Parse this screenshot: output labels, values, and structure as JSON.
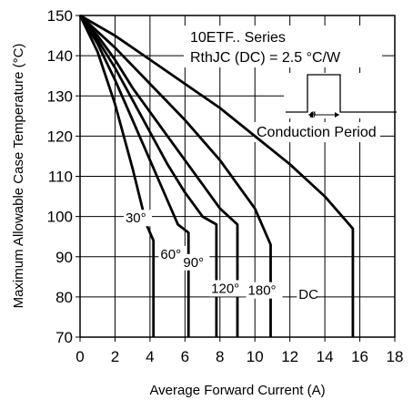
{
  "chart_data": {
    "type": "line",
    "title": "",
    "xlabel": "Average Forward Current (A)",
    "ylabel": "Maximum Allowable Case Temperature (°C)",
    "xlim": [
      0,
      18
    ],
    "ylim": [
      70,
      150
    ],
    "x_ticks": [
      "0",
      "2",
      "4",
      "6",
      "8",
      "10",
      "12",
      "14",
      "16",
      "18"
    ],
    "y_ticks": [
      "70",
      "80",
      "90",
      "100",
      "110",
      "120",
      "130",
      "140",
      "150"
    ],
    "grid": true,
    "annotations": {
      "series_name": "10ETF.. Series",
      "rth": "RthJC (DC) = 2.5 °C/W",
      "inset_symbol": "ø",
      "inset_label": "Conduction Period"
    },
    "series": [
      {
        "name": "30°",
        "label_pos": [
          2.6,
          98.5
        ],
        "points": [
          [
            0,
            150
          ],
          [
            1,
            141
          ],
          [
            2,
            128
          ],
          [
            3,
            112
          ],
          [
            3.8,
            98
          ],
          [
            4.2,
            94
          ],
          [
            4.2,
            70
          ]
        ]
      },
      {
        "name": "60°",
        "label_pos": [
          4.6,
          89.5
        ],
        "points": [
          [
            0,
            150
          ],
          [
            1,
            143
          ],
          [
            2,
            134
          ],
          [
            3,
            124
          ],
          [
            4,
            114
          ],
          [
            5,
            104
          ],
          [
            5.6,
            98
          ],
          [
            6.2,
            96
          ],
          [
            6.2,
            70
          ]
        ]
      },
      {
        "name": "90°",
        "label_pos": [
          5.9,
          87.5
        ],
        "points": [
          [
            0,
            150
          ],
          [
            1,
            144
          ],
          [
            2,
            137
          ],
          [
            3,
            129
          ],
          [
            4,
            121
          ],
          [
            5,
            113
          ],
          [
            6,
            106
          ],
          [
            7,
            100
          ],
          [
            7.8,
            98
          ],
          [
            7.8,
            70
          ]
        ]
      },
      {
        "name": "120°",
        "label_pos": [
          7.5,
          81.0
        ],
        "points": [
          [
            0,
            150
          ],
          [
            1,
            145
          ],
          [
            2,
            139
          ],
          [
            3,
            132
          ],
          [
            4,
            126
          ],
          [
            5,
            120
          ],
          [
            6,
            114
          ],
          [
            7,
            108
          ],
          [
            8,
            102
          ],
          [
            9,
            98
          ],
          [
            9,
            70
          ]
        ]
      },
      {
        "name": "180°",
        "label_pos": [
          9.6,
          80.5
        ],
        "points": [
          [
            0,
            150
          ],
          [
            2,
            142
          ],
          [
            4,
            133
          ],
          [
            6,
            124
          ],
          [
            8,
            114
          ],
          [
            10,
            102
          ],
          [
            10.9,
            93
          ],
          [
            10.9,
            70
          ]
        ]
      },
      {
        "name": "DC",
        "label_pos": [
          12.5,
          79.5
        ],
        "points": [
          [
            0,
            150
          ],
          [
            2,
            145
          ],
          [
            4,
            139
          ],
          [
            6,
            133
          ],
          [
            8,
            127
          ],
          [
            10,
            120
          ],
          [
            12,
            113
          ],
          [
            14,
            105
          ],
          [
            15.6,
            97
          ],
          [
            15.6,
            70
          ]
        ]
      }
    ]
  }
}
